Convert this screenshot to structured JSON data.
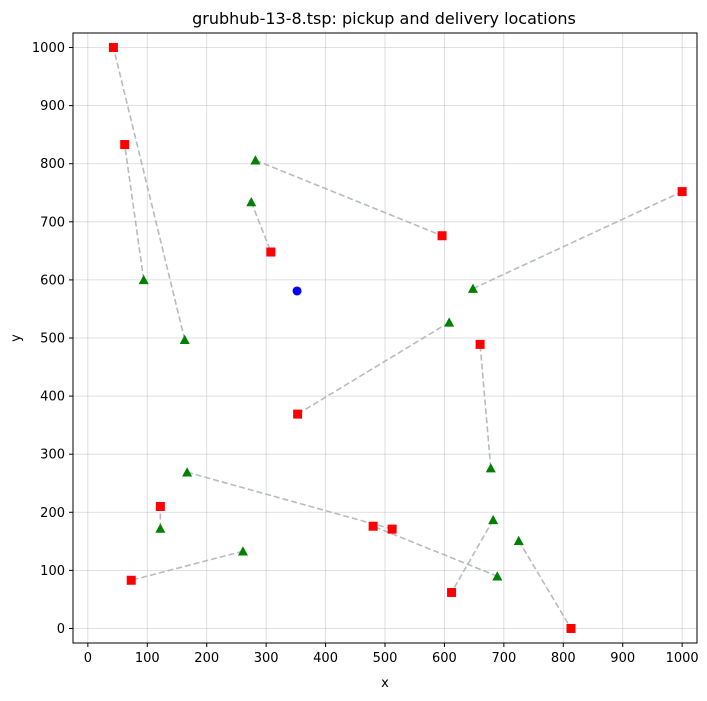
{
  "chart_data": {
    "type": "scatter",
    "title": "grubhub-13-8.tsp: pickup and delivery locations",
    "xlabel": "x",
    "ylabel": "y",
    "xlim": [
      -25,
      1025
    ],
    "ylim": [
      -25,
      1025
    ],
    "xticks": [
      0,
      100,
      200,
      300,
      400,
      500,
      600,
      700,
      800,
      900,
      1000
    ],
    "yticks": [
      0,
      100,
      200,
      300,
      400,
      500,
      600,
      700,
      800,
      900,
      1000
    ],
    "grid": true,
    "colors": {
      "depot": "#0000ff",
      "pickup": "#008000",
      "delivery": "#ff0000",
      "pair_line": "#aab0b6"
    },
    "depot": [
      352,
      581
    ],
    "pairs": [
      {
        "pickup": [
          282,
          806
        ],
        "delivery": [
          596,
          676
        ]
      },
      {
        "pickup": [
          275,
          734
        ],
        "delivery": [
          308,
          648
        ]
      },
      {
        "pickup": [
          94,
          600
        ],
        "delivery": [
          62,
          833
        ]
      },
      {
        "pickup": [
          163,
          497
        ],
        "delivery": [
          43,
          1000
        ]
      },
      {
        "pickup": [
          648,
          585
        ],
        "delivery": [
          1000,
          752
        ]
      },
      {
        "pickup": [
          608,
          527
        ],
        "delivery": [
          353,
          369
        ]
      },
      {
        "pickup": [
          678,
          276
        ],
        "delivery": [
          660,
          489
        ]
      },
      {
        "pickup": [
          167,
          269
        ],
        "delivery": [
          512,
          171
        ]
      },
      {
        "pickup": [
          122,
          172
        ],
        "delivery": [
          122,
          210
        ]
      },
      {
        "pickup": [
          261,
          133
        ],
        "delivery": [
          73,
          83
        ]
      },
      {
        "pickup": [
          682,
          187
        ],
        "delivery": [
          612,
          62
        ]
      },
      {
        "pickup": [
          689,
          90
        ],
        "delivery": [
          480,
          176
        ]
      },
      {
        "pickup": [
          725,
          151
        ],
        "delivery": [
          813,
          0
        ]
      }
    ]
  }
}
